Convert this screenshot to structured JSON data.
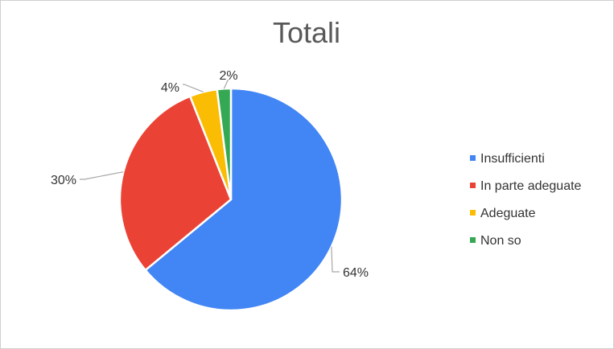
{
  "chart_data": {
    "type": "pie",
    "title": "Totali",
    "categories": [
      "Insufficienti",
      "In parte adeguate",
      "Adeguate",
      "Non so"
    ],
    "values": [
      64,
      30,
      4,
      2
    ],
    "labels": [
      "64%",
      "30%",
      "4%",
      "2%"
    ],
    "colors": [
      "#4285f4",
      "#ea4335",
      "#fbbc04",
      "#34a853"
    ],
    "legend_position": "right",
    "start": "12 o'clock",
    "direction": "clockwise"
  }
}
